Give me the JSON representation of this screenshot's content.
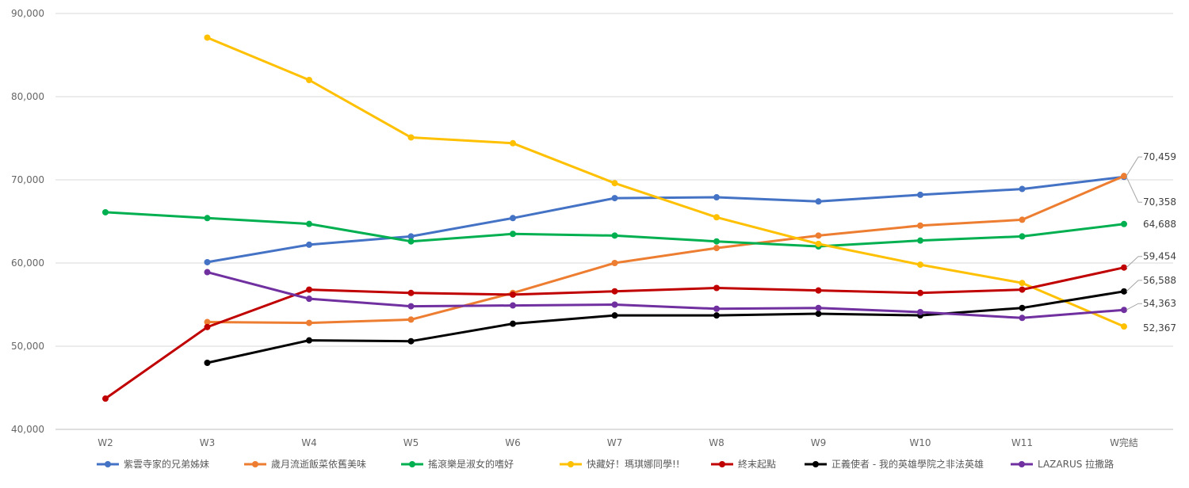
{
  "chart_data": {
    "type": "line",
    "categories": [
      "W2",
      "W3",
      "W4",
      "W5",
      "W6",
      "W7",
      "W8",
      "W9",
      "W10",
      "W11",
      "W完結"
    ],
    "y_ticks": [
      "40,000",
      "50,000",
      "60,000",
      "70,000",
      "80,000",
      "90,000"
    ],
    "ylim": [
      40000,
      90000
    ],
    "grid": "horizontal",
    "legend_position": "bottom",
    "series": [
      {
        "name": "紫雲寺家的兄弟姊妹",
        "color": "#4472C4",
        "values": [
          null,
          60100,
          62200,
          63200,
          65400,
          67800,
          67900,
          67400,
          68200,
          68900,
          70358
        ]
      },
      {
        "name": "歲月流逝飯菜依舊美味",
        "color": "#ED7D31",
        "values": [
          null,
          52900,
          52800,
          53200,
          56400,
          60000,
          61800,
          63300,
          64500,
          65200,
          70459
        ]
      },
      {
        "name": "搖滾樂是淑女的嗜好",
        "color": "#00B050",
        "values": [
          66100,
          65400,
          64700,
          62600,
          63500,
          63300,
          62600,
          62000,
          62700,
          63200,
          64688
        ]
      },
      {
        "name": "快藏好！瑪琪娜同學!!",
        "color": "#FFC000",
        "values": [
          null,
          87100,
          82000,
          75100,
          74400,
          69600,
          65500,
          62300,
          59800,
          57600,
          52367
        ]
      },
      {
        "name": "終末起點",
        "color": "#C00000",
        "values": [
          43700,
          52300,
          56800,
          56400,
          56200,
          56600,
          57000,
          56700,
          56400,
          56800,
          59454
        ]
      },
      {
        "name": "正義使者 - 我的英雄學院之非法英雄",
        "color": "#000000",
        "values": [
          null,
          48000,
          50700,
          50600,
          52700,
          53700,
          53700,
          53900,
          53700,
          54600,
          56588
        ]
      },
      {
        "name": "LAZARUS 拉撒路",
        "color": "#7030A0",
        "values": [
          null,
          58900,
          55700,
          54800,
          54900,
          55000,
          54500,
          54600,
          54100,
          53400,
          54363
        ]
      }
    ],
    "data_labels": [
      {
        "series": 1,
        "text": "70,459"
      },
      {
        "series": 0,
        "text": "70,358"
      },
      {
        "series": 2,
        "text": "64,688"
      },
      {
        "series": 4,
        "text": "59,454"
      },
      {
        "series": 5,
        "text": "56,588"
      },
      {
        "series": 6,
        "text": "54,363"
      },
      {
        "series": 3,
        "text": "52,367"
      }
    ]
  }
}
